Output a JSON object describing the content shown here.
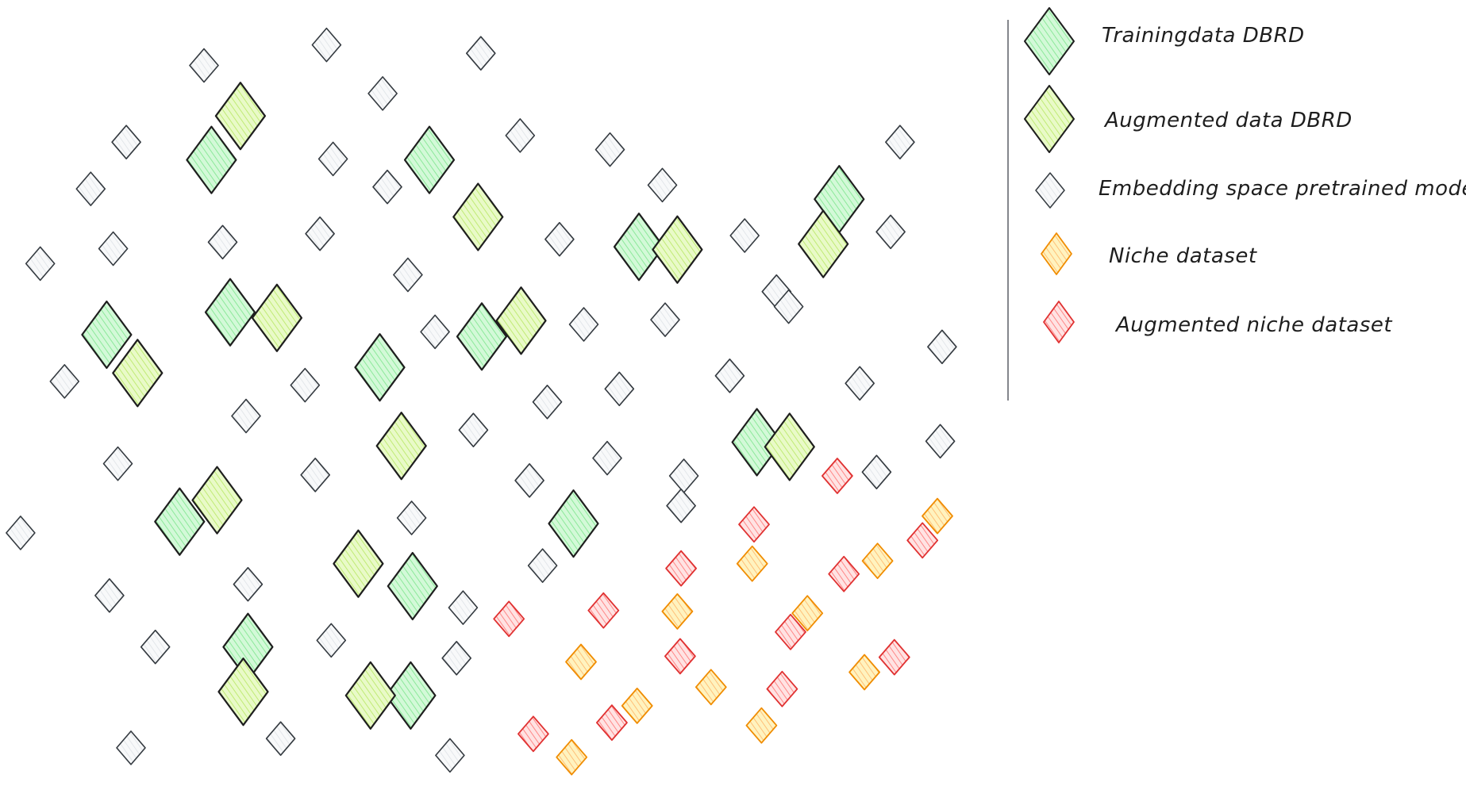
{
  "legend": {
    "items": [
      {
        "key": "training",
        "label": "Trainingdata DBRD"
      },
      {
        "key": "augmented",
        "label": "Augmented data DBRD"
      },
      {
        "key": "embedding",
        "label": "Embedding space pretrained model"
      },
      {
        "key": "niche",
        "label": "Niche dataset"
      },
      {
        "key": "aug_niche",
        "label": "Augmented niche dataset"
      }
    ]
  },
  "styles": {
    "training": {
      "fill": "#b2f2bb",
      "stroke": "#1e1e1e"
    },
    "augmented": {
      "fill": "#d8f5a2",
      "stroke": "#1e1e1e"
    },
    "embedding": {
      "fill": "#e9ecef",
      "stroke": "#343a40"
    },
    "niche": {
      "fill": "#ffd43b",
      "stroke": "#f08c00"
    },
    "aug_niche": {
      "fill": "#ffa8a8",
      "stroke": "#e03131"
    },
    "divider": "#5c5f66"
  }
}
